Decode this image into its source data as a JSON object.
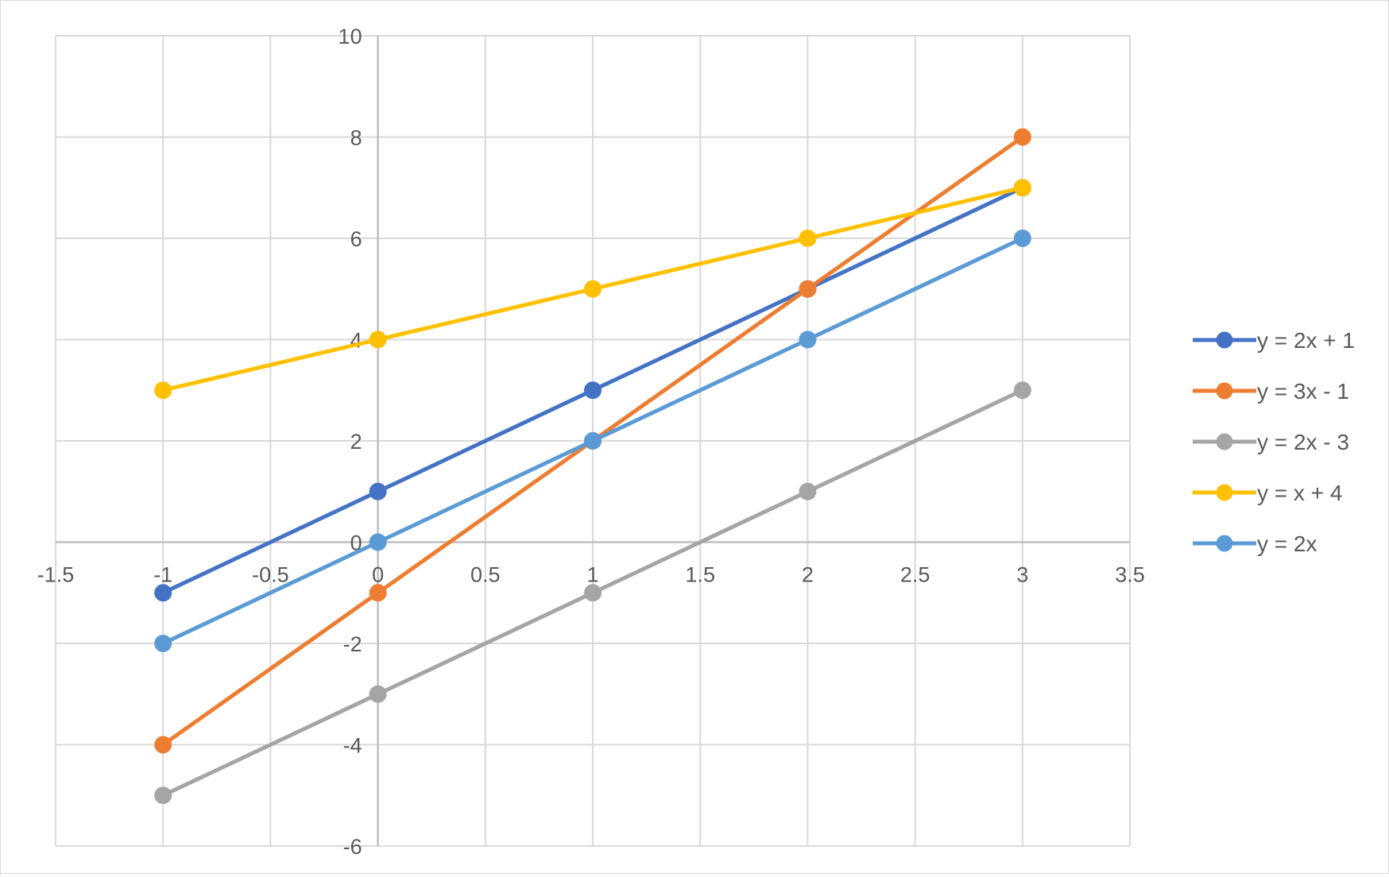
{
  "chart_data": {
    "type": "scatter",
    "title": "",
    "xlabel": "",
    "ylabel": "",
    "xlim": [
      -1.5,
      3.5
    ],
    "ylim": [
      -6,
      10
    ],
    "x_ticks": [
      "-1.5",
      "-1",
      "-0.5",
      "0",
      "0.5",
      "1",
      "1.5",
      "2",
      "2.5",
      "3",
      "3.5"
    ],
    "y_ticks": [
      "-6",
      "-4",
      "-2",
      "0",
      "2",
      "4",
      "6",
      "8",
      "10"
    ],
    "grid": true,
    "legend_position": "right",
    "lines_and_markers": true,
    "x": [
      -1,
      0,
      1,
      2,
      3
    ],
    "series": [
      {
        "name": "y = 2x + 1",
        "color": "#4472c4",
        "values": [
          -1,
          1,
          3,
          5,
          7
        ]
      },
      {
        "name": "y = 3x - 1",
        "color": "#ed7d31",
        "values": [
          -4,
          -1,
          2,
          5,
          8
        ]
      },
      {
        "name": "y = 2x - 3",
        "color": "#a5a5a5",
        "values": [
          -5,
          -3,
          -1,
          1,
          3
        ]
      },
      {
        "name": "y = x + 4",
        "color": "#ffc000",
        "values": [
          3,
          4,
          5,
          6,
          7
        ]
      },
      {
        "name": "y = 2x",
        "color": "#5b9bd5",
        "values": [
          -2,
          0,
          2,
          4,
          6
        ]
      }
    ]
  }
}
